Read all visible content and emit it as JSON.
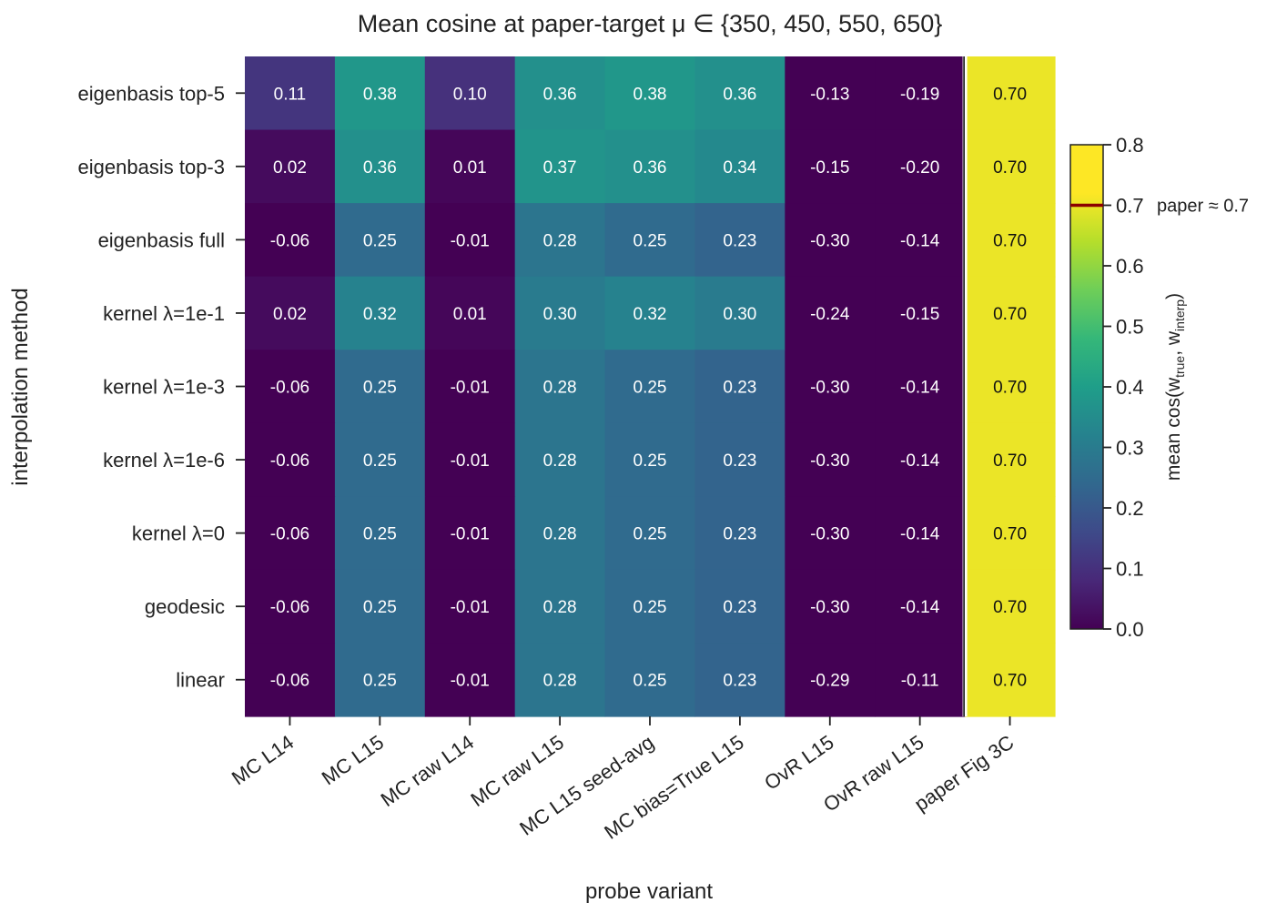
{
  "chart_data": {
    "type": "heatmap",
    "title": "Mean cosine at paper-target μ ∈ {350, 450, 550, 650}",
    "xlabel": "probe variant",
    "ylabel": "interpolation method",
    "columns": [
      "MC  L14",
      "MC  L15",
      "MC raw  L14",
      "MC raw  L15",
      "MC  L15 seed-avg",
      "MC bias=True  L15",
      "OvR  L15",
      "OvR raw  L15",
      "paper Fig 3C"
    ],
    "rows": [
      "eigenbasis  top-5",
      "eigenbasis  top-3",
      "eigenbasis  full",
      "kernel  λ=1e-1",
      "kernel  λ=1e-3",
      "kernel  λ=1e-6",
      "kernel  λ=0",
      "geodesic",
      "linear"
    ],
    "values": [
      [
        0.11,
        0.38,
        0.1,
        0.36,
        0.38,
        0.36,
        -0.13,
        -0.19,
        0.7
      ],
      [
        0.02,
        0.36,
        0.01,
        0.37,
        0.36,
        0.34,
        -0.15,
        -0.2,
        0.7
      ],
      [
        -0.06,
        0.25,
        -0.01,
        0.28,
        0.25,
        0.23,
        -0.3,
        -0.14,
        0.7
      ],
      [
        0.02,
        0.32,
        0.01,
        0.3,
        0.32,
        0.3,
        -0.24,
        -0.15,
        0.7
      ],
      [
        -0.06,
        0.25,
        -0.01,
        0.28,
        0.25,
        0.23,
        -0.3,
        -0.14,
        0.7
      ],
      [
        -0.06,
        0.25,
        -0.01,
        0.28,
        0.25,
        0.23,
        -0.3,
        -0.14,
        0.7
      ],
      [
        -0.06,
        0.25,
        -0.01,
        0.28,
        0.25,
        0.23,
        -0.3,
        -0.14,
        0.7
      ],
      [
        -0.06,
        0.25,
        -0.01,
        0.28,
        0.25,
        0.23,
        -0.3,
        -0.14,
        0.7
      ],
      [
        -0.06,
        0.25,
        -0.01,
        0.28,
        0.25,
        0.23,
        -0.29,
        -0.11,
        0.7
      ]
    ],
    "value_labels": [
      [
        "0.11",
        "0.38",
        "0.10",
        "0.36",
        "0.38",
        "0.36",
        "-0.13",
        "-0.19",
        "0.70"
      ],
      [
        "0.02",
        "0.36",
        "0.01",
        "0.37",
        "0.36",
        "0.34",
        "-0.15",
        "-0.20",
        "0.70"
      ],
      [
        "-0.06",
        "0.25",
        "-0.01",
        "0.28",
        "0.25",
        "0.23",
        "-0.30",
        "-0.14",
        "0.70"
      ],
      [
        "0.02",
        "0.32",
        "0.01",
        "0.30",
        "0.32",
        "0.30",
        "-0.24",
        "-0.15",
        "0.70"
      ],
      [
        "-0.06",
        "0.25",
        "-0.01",
        "0.28",
        "0.25",
        "0.23",
        "-0.30",
        "-0.14",
        "0.70"
      ],
      [
        "-0.06",
        "0.25",
        "-0.01",
        "0.28",
        "0.25",
        "0.23",
        "-0.30",
        "-0.14",
        "0.70"
      ],
      [
        "-0.06",
        "0.25",
        "-0.01",
        "0.28",
        "0.25",
        "0.23",
        "-0.30",
        "-0.14",
        "0.70"
      ],
      [
        "-0.06",
        "0.25",
        "-0.01",
        "0.28",
        "0.25",
        "0.23",
        "-0.30",
        "-0.14",
        "0.70"
      ],
      [
        "-0.06",
        "0.25",
        "-0.01",
        "0.28",
        "0.25",
        "0.23",
        "-0.29",
        "-0.11",
        "0.70"
      ]
    ],
    "colormap": "viridis",
    "color_range": [
      0.0,
      0.8
    ],
    "colorbar": {
      "label_main": "mean cos(w",
      "label_sub1": "true",
      "label_mid": ", w",
      "label_sub2": "interp",
      "label_end": ")",
      "ticks": [
        "0.0",
        "0.1",
        "0.2",
        "0.3",
        "0.4",
        "0.5",
        "0.6",
        "0.7",
        "0.8"
      ],
      "tick_values": [
        0.0,
        0.1,
        0.2,
        0.3,
        0.4,
        0.5,
        0.6,
        0.7,
        0.8
      ],
      "reference_value": 0.7,
      "reference_label": "paper ≈ 0.7",
      "reference_color": "#8b0000"
    },
    "separator_before_column": 8
  }
}
